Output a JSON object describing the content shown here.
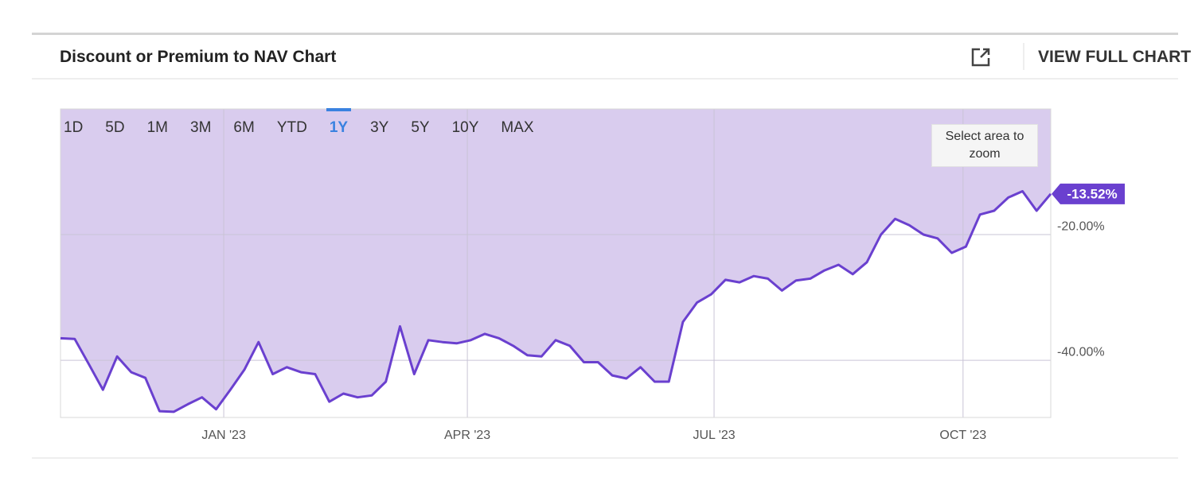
{
  "header": {
    "title": "Discount or Premium to NAV Chart",
    "action": "VIEW FULL CHART"
  },
  "range_buttons": {
    "items": [
      "1D",
      "5D",
      "1M",
      "3M",
      "6M",
      "YTD",
      "1Y",
      "3Y",
      "5Y",
      "10Y",
      "MAX"
    ],
    "active": "1Y"
  },
  "zoom_hint": "Select area to zoom",
  "chart_data": {
    "type": "area-line",
    "series": [
      {
        "name": "Discount or Premium to NAV",
        "color": "#6a40cf",
        "fill": "#d9ccee",
        "values": [
          -36.5,
          -36.6,
          -40.6,
          -44.7,
          -39.4,
          -41.9,
          -42.8,
          -48.1,
          -48.2,
          -47.0,
          -45.9,
          -47.8,
          -44.7,
          -41.5,
          -37.1,
          -42.2,
          -41.1,
          -41.9,
          -42.2,
          -46.6,
          -45.3,
          -45.9,
          -45.6,
          -43.4,
          -34.6,
          -42.2,
          -36.8,
          -37.1,
          -37.3,
          -36.8,
          -35.8,
          -36.5,
          -37.7,
          -39.2,
          -39.4,
          -36.8,
          -37.7,
          -40.3,
          -40.3,
          -42.4,
          -42.9,
          -41.1,
          -43.4,
          -43.4,
          -33.9,
          -30.8,
          -29.5,
          -27.2,
          -27.6,
          -26.6,
          -27.0,
          -28.9,
          -27.3,
          -27.0,
          -25.7,
          -24.8,
          -26.3,
          -24.4,
          -20.0,
          -17.5,
          -18.5,
          -20.0,
          -20.6,
          -22.9,
          -21.9,
          -16.8,
          -16.2,
          -14.1,
          -13.1,
          -16.2,
          -13.52
        ]
      }
    ],
    "current_label": {
      "value": -13.52,
      "label": "-13.52%"
    },
    "xlim": [
      0,
      70
    ],
    "xticks": [
      {
        "value": 11.54,
        "label": "JAN '23"
      },
      {
        "value": 28.76,
        "label": "APR '23"
      },
      {
        "value": 46.2,
        "label": "JUL '23"
      },
      {
        "value": 63.8,
        "label": "OCT '23"
      }
    ],
    "ylim": [
      -49.1,
      0
    ],
    "yticks": [
      {
        "value": -20,
        "label": "-20.00%"
      },
      {
        "value": -40,
        "label": "-40.00%"
      }
    ],
    "grid": true
  }
}
